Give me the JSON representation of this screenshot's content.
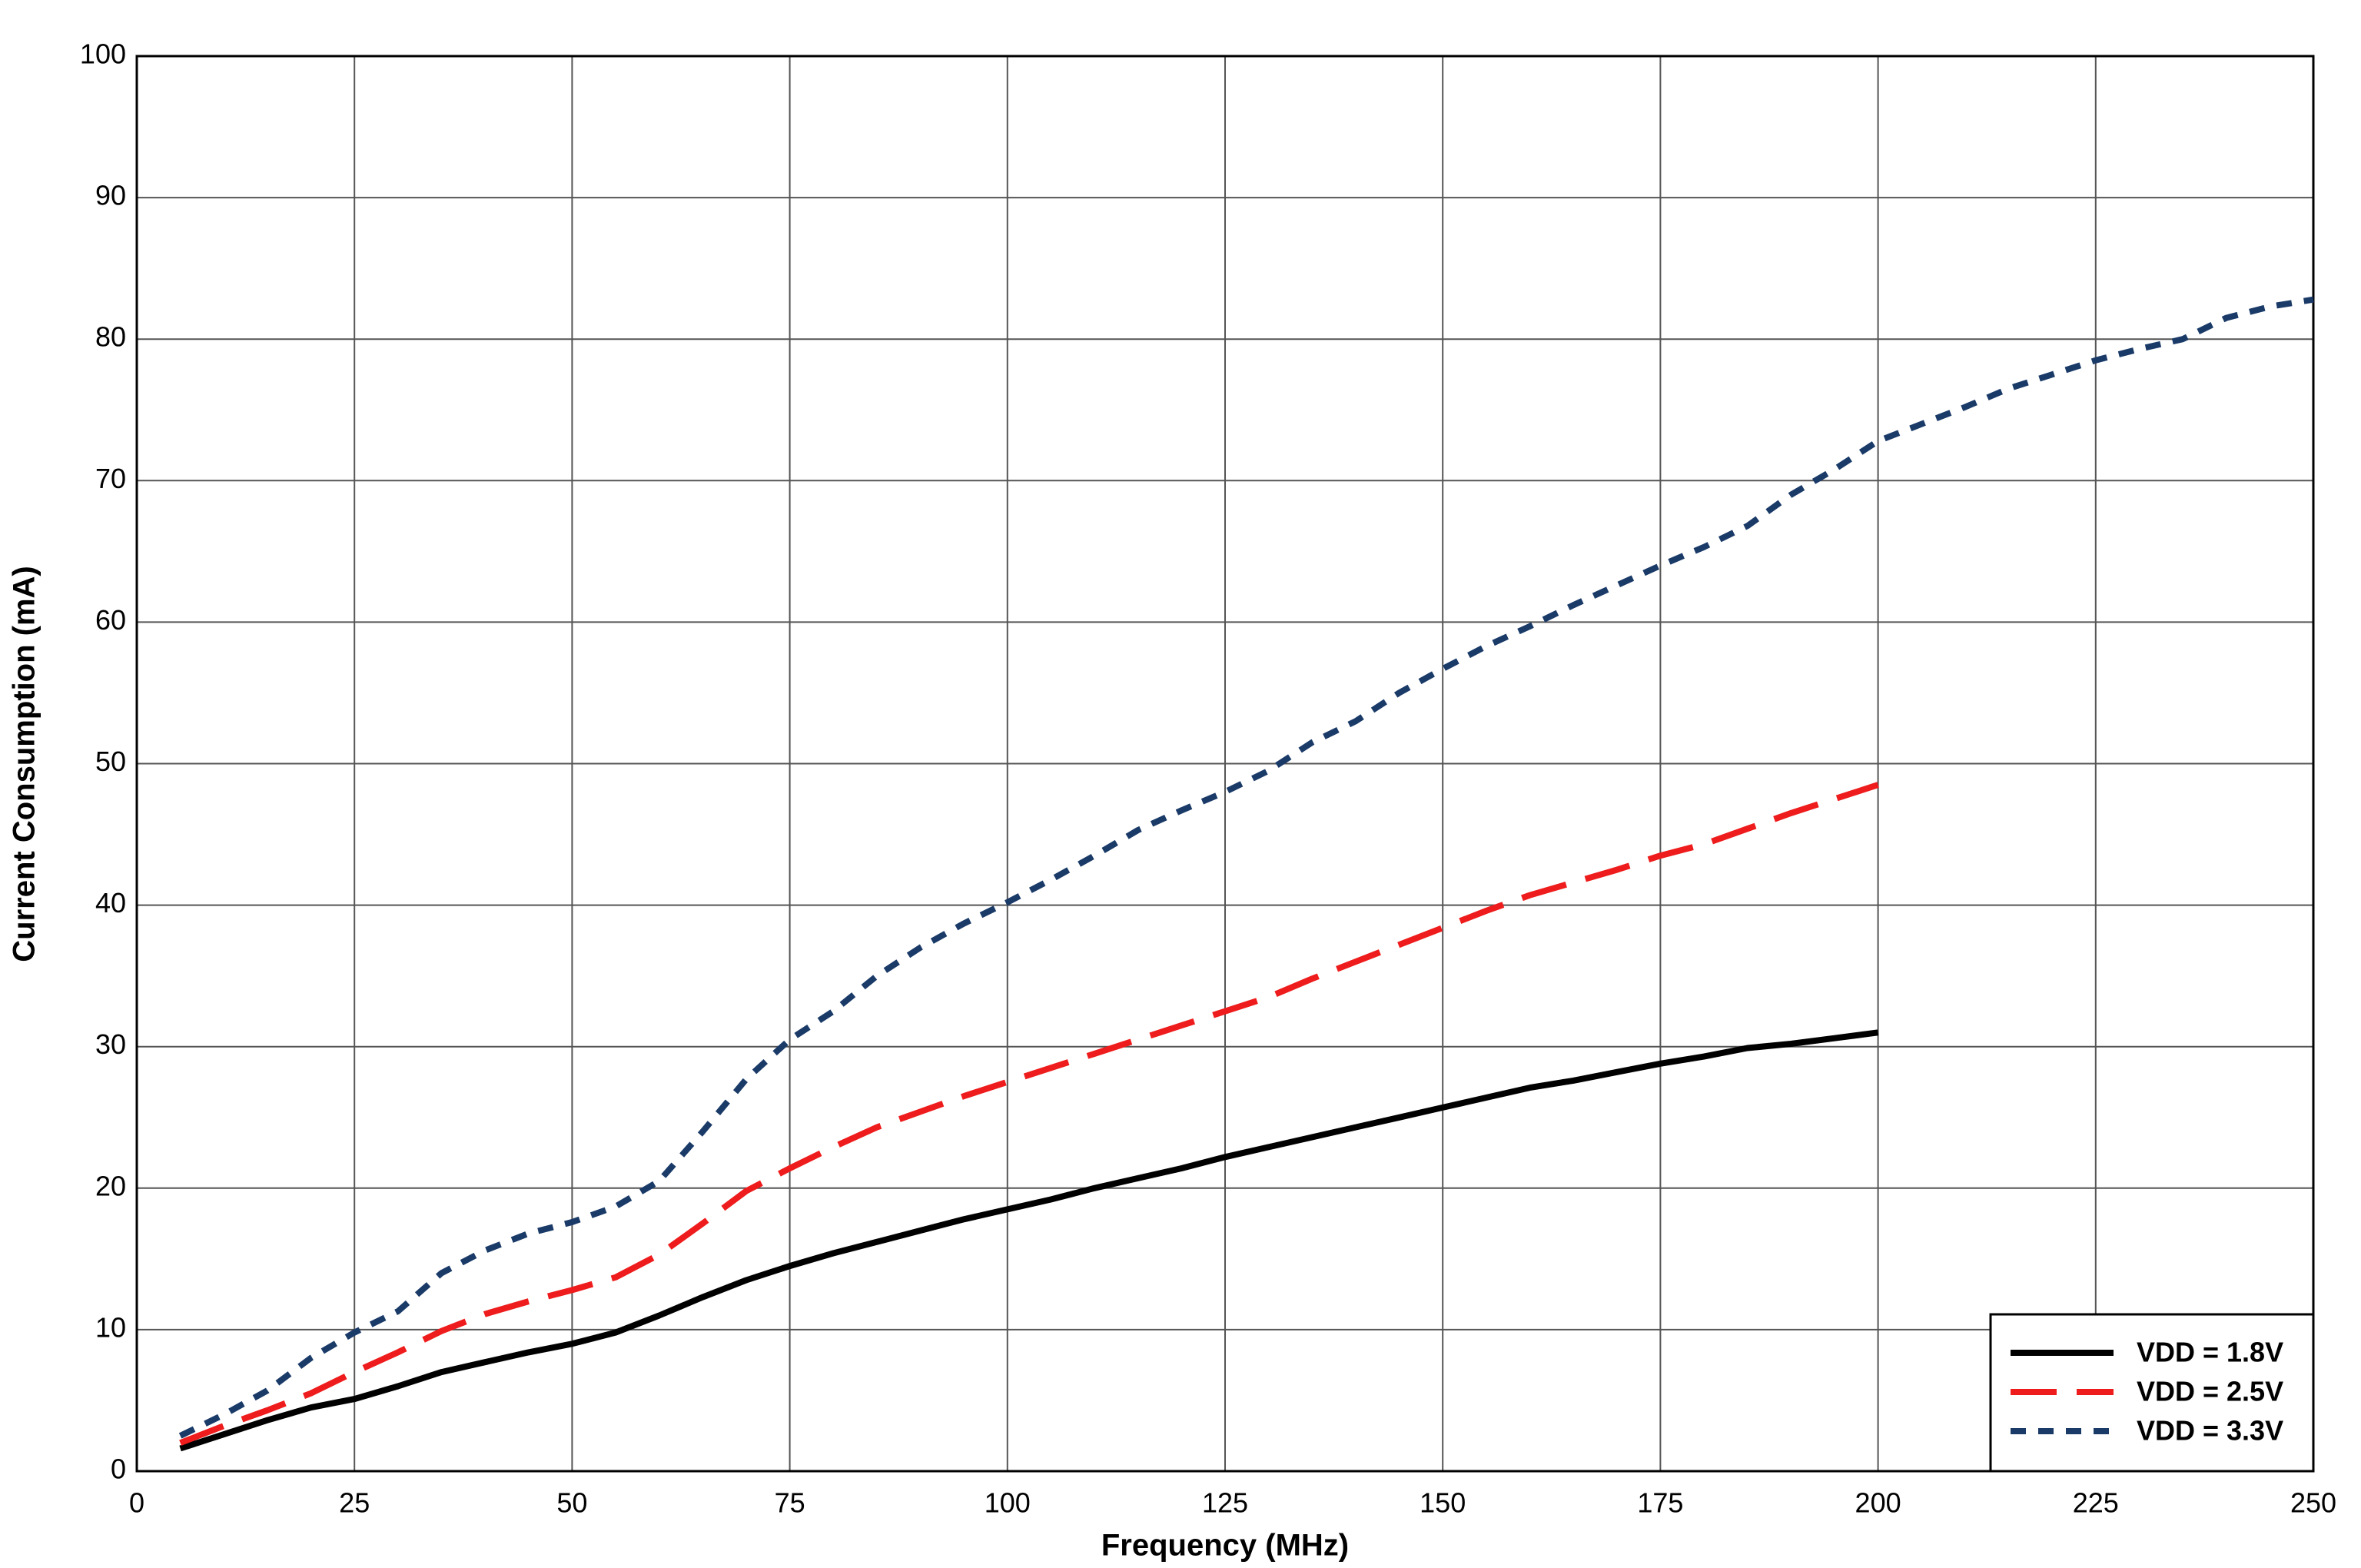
{
  "chart_data": {
    "type": "line",
    "xlabel": "Frequency (MHz)",
    "ylabel": "Current Consumption (mA)",
    "xlim": [
      0,
      250
    ],
    "xticks": [
      0,
      25,
      50,
      75,
      100,
      125,
      150,
      175,
      200,
      225,
      250
    ],
    "ylim": [
      0,
      100
    ],
    "yticks": [
      0,
      10,
      20,
      30,
      40,
      50,
      60,
      70,
      80,
      90,
      100
    ],
    "grid": true,
    "legend": "lower right",
    "series": [
      {
        "name": "VDD = 1.8V",
        "color": "#000000",
        "linestyle": "solid",
        "x": [
          5,
          10,
          15,
          20,
          25,
          30,
          35,
          40,
          45,
          50,
          55,
          60,
          65,
          70,
          75,
          80,
          85,
          90,
          95,
          100,
          105,
          110,
          115,
          120,
          125,
          130,
          135,
          140,
          145,
          150,
          155,
          160,
          165,
          170,
          175,
          180,
          185,
          190,
          195,
          200
        ],
        "values": [
          1.6,
          2.6,
          3.6,
          4.5,
          5.1,
          6.0,
          7.0,
          7.7,
          8.4,
          9.0,
          9.8,
          11.0,
          12.3,
          13.5,
          14.5,
          15.4,
          16.2,
          17.0,
          17.8,
          18.5,
          19.2,
          20.0,
          20.7,
          21.4,
          22.2,
          22.9,
          23.6,
          24.3,
          25.0,
          25.7,
          26.4,
          27.1,
          27.6,
          28.2,
          28.8,
          29.3,
          29.9,
          30.2,
          30.6,
          31.0
        ]
      },
      {
        "name": "VDD = 2.5V",
        "color": "#ee1c1c",
        "linestyle": "dashed",
        "x": [
          5,
          10,
          15,
          20,
          25,
          30,
          35,
          40,
          45,
          50,
          55,
          60,
          65,
          70,
          75,
          80,
          85,
          90,
          95,
          100,
          105,
          110,
          115,
          120,
          125,
          130,
          135,
          140,
          145,
          150,
          155,
          160,
          165,
          170,
          175,
          180,
          185,
          190,
          195,
          200
        ],
        "values": [
          2.0,
          3.2,
          4.3,
          5.5,
          7.0,
          8.4,
          9.9,
          11.1,
          12.0,
          12.8,
          13.7,
          15.3,
          17.5,
          19.8,
          21.4,
          22.9,
          24.3,
          25.4,
          26.5,
          27.5,
          28.5,
          29.5,
          30.5,
          31.5,
          32.5,
          33.5,
          34.8,
          36.0,
          37.2,
          38.4,
          39.6,
          40.7,
          41.6,
          42.5,
          43.5,
          44.3,
          45.4,
          46.5,
          47.5,
          48.5
        ]
      },
      {
        "name": "VDD = 3.3V",
        "color": "#1a3a68",
        "linestyle": "dotted",
        "x": [
          5,
          10,
          15,
          20,
          25,
          30,
          35,
          40,
          45,
          50,
          55,
          60,
          65,
          70,
          75,
          80,
          85,
          90,
          95,
          100,
          105,
          110,
          115,
          120,
          125,
          130,
          135,
          140,
          145,
          150,
          155,
          160,
          165,
          170,
          175,
          180,
          185,
          190,
          195,
          200,
          205,
          210,
          215,
          220,
          225,
          230,
          235,
          240,
          245,
          250
        ],
        "values": [
          2.5,
          4.0,
          5.7,
          8.0,
          9.8,
          11.3,
          14.0,
          15.6,
          16.8,
          17.6,
          18.7,
          20.5,
          24.0,
          27.7,
          30.5,
          32.5,
          35.0,
          37.0,
          38.7,
          40.2,
          41.8,
          43.5,
          45.3,
          46.7,
          48.0,
          49.5,
          51.5,
          53.0,
          55.0,
          56.7,
          58.3,
          59.7,
          61.2,
          62.6,
          64.0,
          65.3,
          66.8,
          69.0,
          70.8,
          72.8,
          74.0,
          75.2,
          76.5,
          77.5,
          78.5,
          79.3,
          80.0,
          81.5,
          82.3,
          82.8
        ]
      }
    ]
  }
}
